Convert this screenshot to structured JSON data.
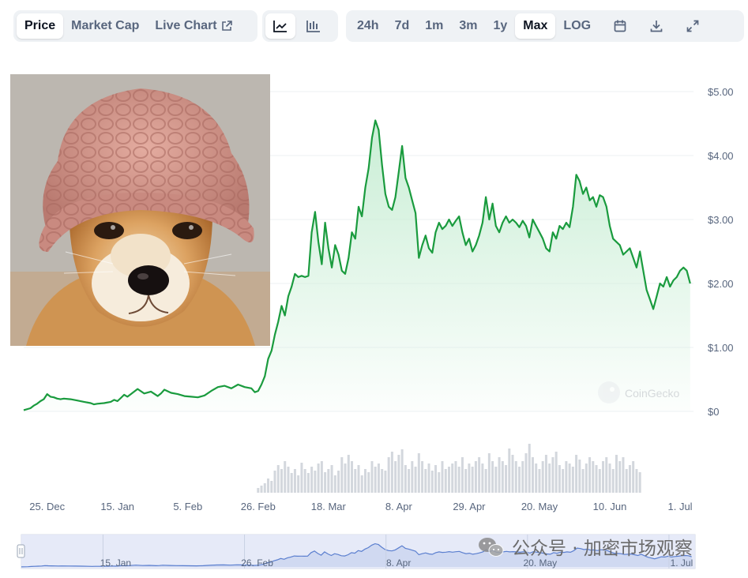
{
  "toolbar": {
    "tabs": [
      {
        "label": "Price",
        "active": true
      },
      {
        "label": "Market Cap",
        "active": false
      },
      {
        "label": "Live Chart",
        "active": false
      }
    ],
    "live_chart_icon": "external-link-icon",
    "chart_type_icons": [
      "line-chart-icon",
      "candlestick-chart-icon"
    ],
    "ranges": [
      {
        "label": "24h",
        "active": false
      },
      {
        "label": "7d",
        "active": false
      },
      {
        "label": "1m",
        "active": false
      },
      {
        "label": "3m",
        "active": false
      },
      {
        "label": "1y",
        "active": false
      },
      {
        "label": "Max",
        "active": true
      },
      {
        "label": "LOG",
        "active": false
      }
    ],
    "tool_icons": [
      "calendar-icon",
      "download-icon",
      "expand-icon"
    ]
  },
  "overlay_image": {
    "subject": "shiba dog wearing pink knit beanie",
    "colors": {
      "hat": "#d59a8f",
      "fur": "#d9a060",
      "background": "#bcb7b0"
    }
  },
  "watermark": {
    "brand": "CoinGecko",
    "wechat": "公众号 · 加密市场观察"
  },
  "colors": {
    "line": "#16c784",
    "line_dark": "#1a9b3e",
    "fill_top": "#c9eed5",
    "volume": "#d3d7dd",
    "navigator_line": "#5b7fcf",
    "navigator_bg": "#e3e8f7"
  },
  "chart_data": {
    "type": "line",
    "title": "",
    "xlabel": "",
    "ylabel": "",
    "ylim": [
      0,
      5
    ],
    "y_ticks": [
      "$5.00",
      "$4.00",
      "$3.00",
      "$2.00",
      "$1.00",
      "$0"
    ],
    "y_tick_values": [
      5,
      4,
      3,
      2,
      1,
      0
    ],
    "x_ticks": [
      "25. Dec",
      "15. Jan",
      "5. Feb",
      "26. Feb",
      "18. Mar",
      "8. Apr",
      "29. Apr",
      "20. May",
      "10. Jun",
      "1. Jul"
    ],
    "x_tick_days": [
      7,
      28,
      49,
      70,
      91,
      112,
      133,
      154,
      175,
      196
    ],
    "x_range_days": [
      0,
      200
    ],
    "x_origin_date": "2023-12-18",
    "series": [
      {
        "name": "",
        "x": [
          0,
          2,
          3,
          4,
          5,
          6,
          7,
          8,
          9,
          10,
          11,
          12,
          14,
          16,
          18,
          20,
          21,
          22,
          24,
          26,
          27,
          28,
          29,
          30,
          31,
          32,
          34,
          36,
          38,
          40,
          41,
          42,
          44,
          46,
          48,
          50,
          52,
          54,
          56,
          58,
          60,
          62,
          64,
          66,
          68,
          69,
          70,
          71,
          72,
          73,
          74,
          75,
          76,
          77,
          78,
          79,
          80,
          81,
          82,
          83,
          84,
          85,
          86,
          87,
          88,
          89,
          90,
          91,
          92,
          93,
          94,
          95,
          96,
          97,
          98,
          99,
          100,
          101,
          102,
          103,
          104,
          105,
          106,
          107,
          108,
          109,
          110,
          111,
          112,
          113,
          114,
          115,
          116,
          117,
          118,
          119,
          120,
          121,
          122,
          123,
          124,
          125,
          126,
          127,
          128,
          129,
          130,
          131,
          132,
          133,
          134,
          135,
          136,
          137,
          138,
          139,
          140,
          141,
          142,
          143,
          144,
          145,
          146,
          147,
          148,
          149,
          150,
          151,
          152,
          153,
          154,
          155,
          156,
          157,
          158,
          159,
          160,
          161,
          162,
          163,
          164,
          165,
          166,
          167,
          168,
          169,
          170,
          171,
          172,
          173,
          174,
          175,
          176,
          177,
          178,
          179,
          180,
          181,
          182,
          183,
          184,
          185,
          186,
          187,
          188,
          189,
          190,
          191,
          192,
          193,
          194,
          195,
          196,
          197,
          198,
          199
        ],
        "y": [
          0.02,
          0.05,
          0.09,
          0.12,
          0.16,
          0.19,
          0.27,
          0.23,
          0.22,
          0.2,
          0.19,
          0.2,
          0.19,
          0.17,
          0.15,
          0.13,
          0.11,
          0.12,
          0.13,
          0.15,
          0.18,
          0.16,
          0.21,
          0.26,
          0.23,
          0.27,
          0.35,
          0.28,
          0.31,
          0.24,
          0.28,
          0.34,
          0.29,
          0.27,
          0.24,
          0.23,
          0.22,
          0.25,
          0.32,
          0.38,
          0.4,
          0.36,
          0.42,
          0.38,
          0.36,
          0.3,
          0.32,
          0.42,
          0.55,
          0.82,
          0.95,
          1.2,
          1.4,
          1.65,
          1.5,
          1.8,
          1.95,
          2.15,
          2.1,
          2.12,
          2.1,
          2.12,
          2.8,
          3.12,
          2.65,
          2.3,
          2.95,
          2.55,
          2.25,
          2.6,
          2.45,
          2.2,
          2.15,
          2.4,
          2.8,
          2.7,
          3.2,
          3.05,
          3.5,
          3.8,
          4.28,
          4.55,
          4.4,
          3.85,
          3.4,
          3.2,
          3.15,
          3.35,
          3.75,
          4.15,
          3.65,
          3.5,
          3.3,
          3.1,
          2.4,
          2.6,
          2.75,
          2.55,
          2.48,
          2.8,
          2.95,
          2.85,
          2.9,
          3.0,
          2.9,
          2.98,
          3.05,
          2.8,
          2.6,
          2.7,
          2.5,
          2.6,
          2.75,
          2.95,
          3.35,
          3.0,
          3.25,
          2.9,
          2.8,
          2.95,
          3.05,
          2.95,
          3.0,
          2.95,
          2.88,
          2.98,
          2.9,
          2.72,
          3.0,
          2.9,
          2.8,
          2.7,
          2.55,
          2.5,
          2.8,
          2.7,
          2.9,
          2.85,
          2.95,
          2.88,
          3.2,
          3.7,
          3.6,
          3.4,
          3.5,
          3.3,
          3.35,
          3.2,
          3.38,
          3.35,
          3.2,
          2.9,
          2.7,
          2.65,
          2.6,
          2.45,
          2.5,
          2.55,
          2.4,
          2.25,
          2.5,
          2.2,
          1.9,
          1.75,
          1.6,
          1.8,
          2.0,
          1.95,
          2.1,
          1.95,
          2.05,
          2.1,
          2.2,
          2.25,
          2.2,
          2.0
        ]
      }
    ],
    "volume": [
      0,
      0,
      0,
      0,
      0,
      0,
      0,
      0,
      0,
      0,
      0,
      0,
      0,
      0,
      0,
      0,
      0,
      0,
      0,
      0,
      0,
      0,
      0,
      0,
      0,
      0,
      0,
      0,
      0,
      0,
      0,
      0,
      0,
      0,
      0,
      0,
      0,
      0,
      0,
      0,
      0,
      0,
      0,
      0,
      0,
      0,
      0,
      0,
      0,
      0,
      0,
      0,
      0,
      0,
      0,
      0,
      0,
      0,
      0,
      0,
      0,
      0,
      0,
      0,
      0,
      0,
      0,
      0,
      0,
      0,
      0.06,
      0.09,
      0.12,
      0.18,
      0.15,
      0.28,
      0.35,
      0.3,
      0.4,
      0.33,
      0.25,
      0.3,
      0.22,
      0.38,
      0.3,
      0.25,
      0.33,
      0.28,
      0.37,
      0.4,
      0.26,
      0.3,
      0.35,
      0.22,
      0.28,
      0.45,
      0.37,
      0.48,
      0.4,
      0.3,
      0.35,
      0.22,
      0.3,
      0.26,
      0.4,
      0.33,
      0.37,
      0.3,
      0.28,
      0.45,
      0.52,
      0.4,
      0.48,
      0.55,
      0.35,
      0.3,
      0.4,
      0.33,
      0.5,
      0.4,
      0.3,
      0.37,
      0.28,
      0.35,
      0.26,
      0.4,
      0.3,
      0.33,
      0.37,
      0.4,
      0.33,
      0.45,
      0.3,
      0.37,
      0.33,
      0.4,
      0.45,
      0.37,
      0.3,
      0.5,
      0.4,
      0.33,
      0.45,
      0.4,
      0.35,
      0.56,
      0.48,
      0.4,
      0.33,
      0.4,
      0.5,
      0.62,
      0.45,
      0.37,
      0.3,
      0.4,
      0.48,
      0.37,
      0.45,
      0.52,
      0.35,
      0.3,
      0.4,
      0.37,
      0.33,
      0.48,
      0.42,
      0.3,
      0.37,
      0.45,
      0.4,
      0.35,
      0.3,
      0.4,
      0.45,
      0.37,
      0.3,
      0.48,
      0.4,
      0.45,
      0.3,
      0.35,
      0.4,
      0.3,
      0.26
    ],
    "navigator_ticks": [
      "15. Jan",
      "26. Feb",
      "8. Apr",
      "20. May",
      "1. Jul"
    ],
    "navigator_tick_days": [
      28,
      70,
      112,
      154,
      196
    ],
    "grid": true,
    "legend": "none"
  }
}
